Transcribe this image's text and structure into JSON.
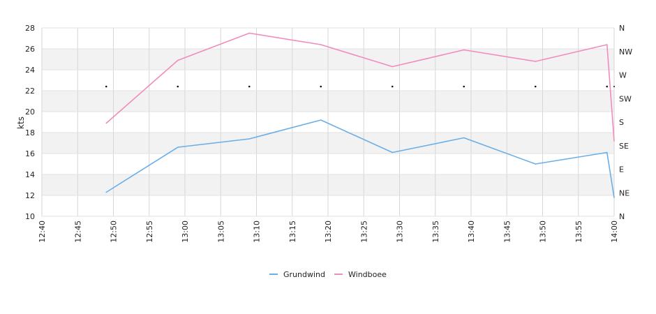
{
  "chart_data": {
    "type": "line",
    "xlabel": "",
    "ylabel": "kts",
    "ylim": [
      10,
      28
    ],
    "yticks": [
      10,
      12,
      14,
      16,
      18,
      20,
      22,
      24,
      26,
      28
    ],
    "x_ticks": [
      "12:40",
      "12:45",
      "12:50",
      "12:55",
      "13:00",
      "13:05",
      "13:10",
      "13:15",
      "13:20",
      "13:25",
      "13:30",
      "13:35",
      "13:40",
      "13:45",
      "13:50",
      "13:55",
      "14:00"
    ],
    "x_range": [
      "12:40",
      "14:00"
    ],
    "right_axis_labels": [
      "N",
      "NW",
      "W",
      "SW",
      "S",
      "SE",
      "E",
      "NE",
      "N"
    ],
    "grid": true,
    "alternating_bands": true,
    "legend_position": "bottom-center",
    "direction_markers_x": [
      "12:49",
      "12:59",
      "13:09",
      "13:19",
      "13:29",
      "13:39",
      "13:49",
      "13:59"
    ],
    "series": [
      {
        "name": "Grundwind",
        "color": "#6aaee8",
        "x": [
          "12:49",
          "12:59",
          "13:09",
          "13:19",
          "13:29",
          "13:39",
          "13:49",
          "13:59",
          "14:00"
        ],
        "values": [
          12.3,
          16.6,
          17.4,
          19.2,
          16.1,
          17.5,
          15.0,
          16.1,
          11.8
        ]
      },
      {
        "name": "Windboee",
        "color": "#f08cbc",
        "x": [
          "12:49",
          "12:59",
          "13:09",
          "13:19",
          "13:29",
          "13:39",
          "13:49",
          "13:59",
          "14:00"
        ],
        "values": [
          18.9,
          24.9,
          27.5,
          26.4,
          24.3,
          25.9,
          24.8,
          26.4,
          17.2
        ]
      }
    ]
  }
}
